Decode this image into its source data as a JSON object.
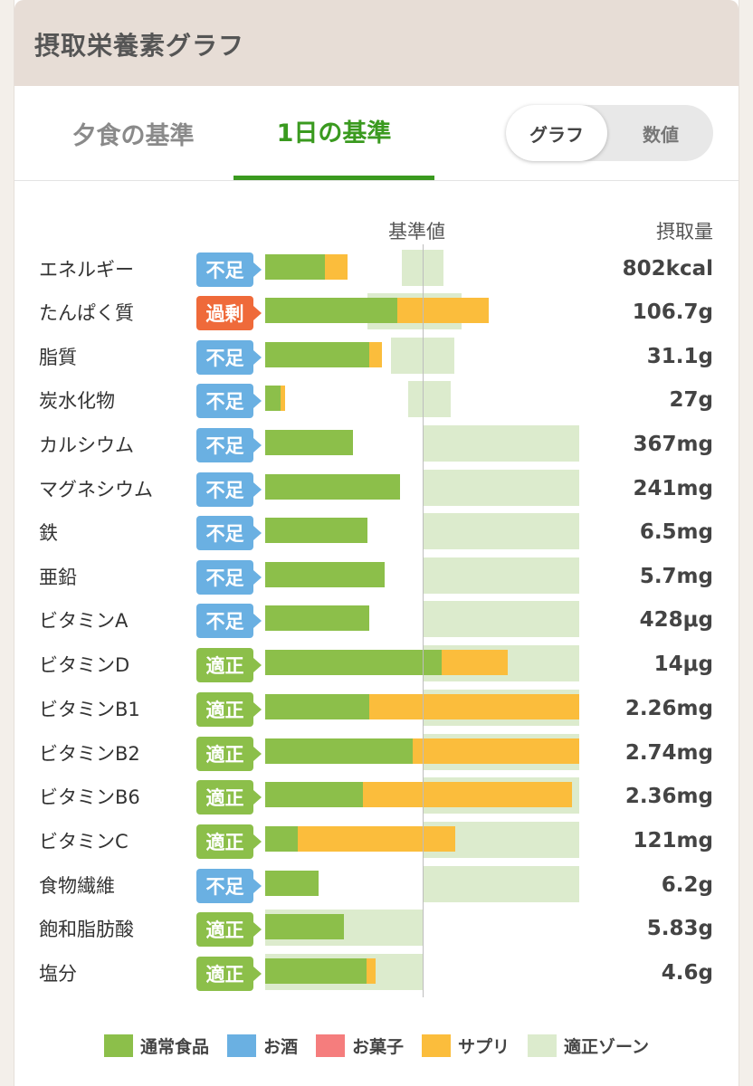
{
  "title": "摂取栄養素グラフ",
  "tabs": [
    {
      "label": "夕食の基準",
      "active": false
    },
    {
      "label": "1日の基準",
      "active": true
    }
  ],
  "toggle": {
    "selected": "グラフ",
    "other": "数値"
  },
  "columns": {
    "reference": "基準値",
    "intake": "摂取量"
  },
  "colors": {
    "food": "#8cbf4a",
    "alcohol": "#6ab0e2",
    "snack": "#f57d7d",
    "supplement": "#fbbd3c",
    "zone": "#dcebcd",
    "status_short": "#6ab0e2",
    "status_excess": "#ef6a3a",
    "status_ok": "#8cbf4a",
    "active_tab": "#3a9a1f"
  },
  "nutrients": [
    {
      "name": "エネルギー",
      "status": "不足",
      "status_type": "short",
      "value": "802kcal"
    },
    {
      "name": "たんぱく質",
      "status": "過剰",
      "status_type": "excess",
      "value": "106.7g"
    },
    {
      "name": "脂質",
      "status": "不足",
      "status_type": "short",
      "value": "31.1g"
    },
    {
      "name": "炭水化物",
      "status": "不足",
      "status_type": "short",
      "value": "27g"
    },
    {
      "name": "カルシウム",
      "status": "不足",
      "status_type": "short",
      "value": "367mg"
    },
    {
      "name": "マグネシウム",
      "status": "不足",
      "status_type": "short",
      "value": "241mg"
    },
    {
      "name": "鉄",
      "status": "不足",
      "status_type": "short",
      "value": "6.5mg"
    },
    {
      "name": "亜鉛",
      "status": "不足",
      "status_type": "short",
      "value": "5.7mg"
    },
    {
      "name": "ビタミンA",
      "status": "不足",
      "status_type": "short",
      "value": "428μg"
    },
    {
      "name": "ビタミンD",
      "status": "適正",
      "status_type": "ok",
      "value": "14μg"
    },
    {
      "name": "ビタミンB1",
      "status": "適正",
      "status_type": "ok",
      "value": "2.26mg"
    },
    {
      "name": "ビタミンB2",
      "status": "適正",
      "status_type": "ok",
      "value": "2.74mg"
    },
    {
      "name": "ビタミンB6",
      "status": "適正",
      "status_type": "ok",
      "value": "2.36mg"
    },
    {
      "name": "ビタミンC",
      "status": "適正",
      "status_type": "ok",
      "value": "121mg"
    },
    {
      "name": "食物繊維",
      "status": "不足",
      "status_type": "short",
      "value": "6.2g"
    },
    {
      "name": "飽和脂肪酸",
      "status": "適正",
      "status_type": "ok",
      "value": "5.83g"
    },
    {
      "name": "塩分",
      "status": "適正",
      "status_type": "ok",
      "value": "4.6g"
    }
  ],
  "legend": [
    {
      "label": "通常食品",
      "color": "#8cbf4a"
    },
    {
      "label": "お酒",
      "color": "#6ab0e2"
    },
    {
      "label": "お菓子",
      "color": "#f57d7d"
    },
    {
      "label": "サプリ",
      "color": "#fbbd3c"
    },
    {
      "label": "適正ゾーン",
      "color": "#dcebcd"
    }
  ]
}
